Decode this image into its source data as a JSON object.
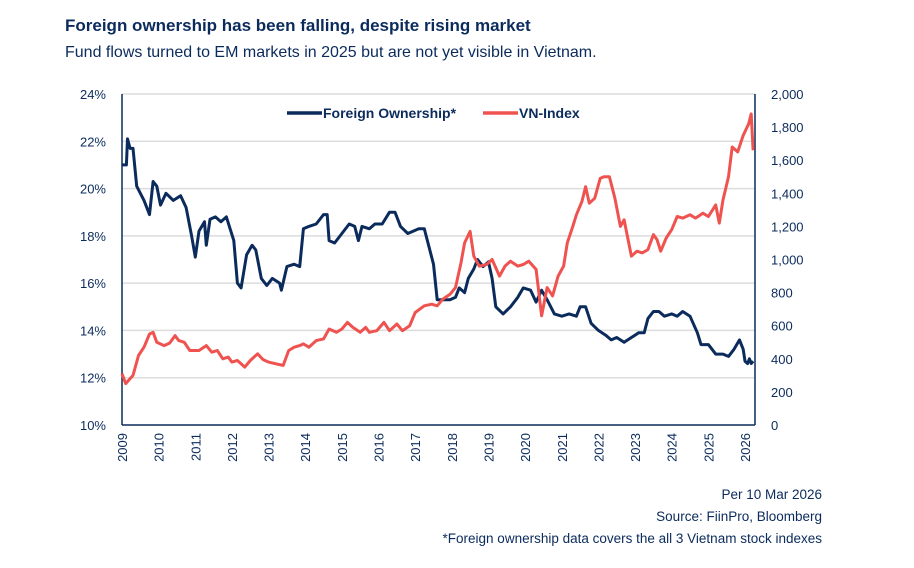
{
  "chart_data": {
    "type": "line",
    "title": "Foreign ownership has been falling, despite rising market",
    "subtitle": "Fund flows turned to EM markets in 2025 but are not yet visible in Vietnam.",
    "xlabel": "",
    "ylabel_left": "",
    "ylabel_right": "",
    "x_ticks": [
      "2009",
      "2010",
      "2011",
      "2012",
      "2013",
      "2014",
      "2015",
      "2016",
      "2017",
      "2018",
      "2019",
      "2020",
      "2021",
      "2022",
      "2023",
      "2024",
      "2025",
      "2026"
    ],
    "y_left": {
      "range": [
        10,
        24
      ],
      "ticks": [
        "10%",
        "12%",
        "14%",
        "16%",
        "18%",
        "20%",
        "22%",
        "24%"
      ],
      "tick_values": [
        10,
        12,
        14,
        16,
        18,
        20,
        22,
        24
      ]
    },
    "y_right": {
      "range": [
        0,
        2000
      ],
      "ticks": [
        "0",
        "200",
        "400",
        "600",
        "800",
        "1,000",
        "1,200",
        "1,400",
        "1,600",
        "1,800",
        "2,000"
      ],
      "tick_values": [
        0,
        200,
        400,
        600,
        800,
        1000,
        1200,
        1400,
        1600,
        1800,
        2000
      ]
    },
    "legend_position": "top-center",
    "grid": true,
    "series": [
      {
        "name": "Foreign Ownership*",
        "axis": "left",
        "color": "#0b2b5c",
        "x": [
          2009.0,
          2009.12,
          2009.15,
          2009.22,
          2009.3,
          2009.4,
          2009.6,
          2009.75,
          2009.85,
          2009.95,
          2010.05,
          2010.2,
          2010.4,
          2010.6,
          2010.75,
          2010.9,
          2011.0,
          2011.1,
          2011.25,
          2011.3,
          2011.4,
          2011.55,
          2011.7,
          2011.85,
          2011.95,
          2012.05,
          2012.15,
          2012.25,
          2012.4,
          2012.55,
          2012.65,
          2012.8,
          2012.95,
          2013.1,
          2013.3,
          2013.35,
          2013.5,
          2013.7,
          2013.85,
          2013.95,
          2014.1,
          2014.3,
          2014.5,
          2014.6,
          2014.65,
          2014.8,
          2015.0,
          2015.2,
          2015.35,
          2015.45,
          2015.55,
          2015.75,
          2015.9,
          2016.1,
          2016.3,
          2016.45,
          2016.6,
          2016.8,
          2016.95,
          2017.1,
          2017.25,
          2017.35,
          2017.5,
          2017.6,
          2017.75,
          2017.95,
          2018.1,
          2018.2,
          2018.35,
          2018.45,
          2018.6,
          2018.7,
          2018.85,
          2019.0,
          2019.1,
          2019.2,
          2019.4,
          2019.6,
          2019.8,
          2019.95,
          2020.15,
          2020.3,
          2020.45,
          2020.6,
          2020.8,
          2021.0,
          2021.2,
          2021.4,
          2021.5,
          2021.65,
          2021.8,
          2022.0,
          2022.2,
          2022.35,
          2022.5,
          2022.7,
          2022.9,
          2023.1,
          2023.25,
          2023.35,
          2023.5,
          2023.65,
          2023.8,
          2024.0,
          2024.15,
          2024.3,
          2024.5,
          2024.7,
          2024.8,
          2025.0,
          2025.2,
          2025.4,
          2025.55,
          2025.7,
          2025.85,
          2025.95,
          2026.0,
          2026.07,
          2026.12,
          2026.17,
          2026.22
        ],
        "values": [
          21.0,
          21.0,
          22.1,
          21.7,
          21.7,
          20.1,
          19.5,
          18.9,
          20.3,
          20.1,
          19.3,
          19.8,
          19.5,
          19.7,
          19.2,
          18.0,
          17.1,
          18.2,
          18.6,
          17.6,
          18.7,
          18.8,
          18.6,
          18.8,
          18.3,
          17.8,
          16.0,
          15.8,
          17.2,
          17.6,
          17.4,
          16.2,
          15.9,
          16.2,
          16.0,
          15.7,
          16.7,
          16.8,
          16.7,
          18.3,
          18.4,
          18.5,
          18.9,
          18.9,
          17.8,
          17.7,
          18.1,
          18.5,
          18.4,
          17.8,
          18.4,
          18.3,
          18.5,
          18.5,
          19.0,
          19.0,
          18.4,
          18.1,
          18.2,
          18.3,
          18.3,
          17.7,
          16.8,
          15.3,
          15.3,
          15.3,
          15.4,
          15.8,
          15.6,
          16.2,
          16.6,
          17.0,
          16.7,
          16.9,
          16.2,
          15.0,
          14.7,
          15.0,
          15.4,
          15.8,
          15.7,
          15.2,
          15.7,
          15.3,
          14.7,
          14.6,
          14.7,
          14.6,
          15.0,
          15.0,
          14.3,
          14.0,
          13.8,
          13.6,
          13.7,
          13.5,
          13.7,
          13.9,
          13.9,
          14.5,
          14.8,
          14.8,
          14.6,
          14.7,
          14.6,
          14.8,
          14.6,
          13.9,
          13.4,
          13.4,
          13.0,
          13.0,
          12.9,
          13.2,
          13.6,
          13.2,
          12.7,
          12.6,
          12.8,
          12.6,
          12.7
        ]
      },
      {
        "name": "VN-Index",
        "axis": "right",
        "color": "#ef5350",
        "x": [
          2009.0,
          2009.1,
          2009.3,
          2009.45,
          2009.6,
          2009.75,
          2009.85,
          2009.95,
          2010.15,
          2010.3,
          2010.45,
          2010.55,
          2010.7,
          2010.85,
          2011.1,
          2011.3,
          2011.45,
          2011.6,
          2011.75,
          2011.9,
          2012.0,
          2012.15,
          2012.35,
          2012.5,
          2012.7,
          2012.85,
          2013.0,
          2013.2,
          2013.4,
          2013.55,
          2013.7,
          2013.85,
          2013.95,
          2014.1,
          2014.3,
          2014.5,
          2014.65,
          2014.85,
          2015.0,
          2015.15,
          2015.3,
          2015.5,
          2015.65,
          2015.75,
          2015.95,
          2016.15,
          2016.3,
          2016.5,
          2016.65,
          2016.85,
          2017.0,
          2017.25,
          2017.45,
          2017.6,
          2017.75,
          2017.95,
          2018.1,
          2018.25,
          2018.35,
          2018.5,
          2018.6,
          2018.75,
          2018.95,
          2019.1,
          2019.3,
          2019.45,
          2019.6,
          2019.8,
          2019.95,
          2020.1,
          2020.3,
          2020.45,
          2020.6,
          2020.75,
          2020.9,
          2021.05,
          2021.15,
          2021.3,
          2021.4,
          2021.55,
          2021.65,
          2021.75,
          2021.9,
          2022.05,
          2022.15,
          2022.3,
          2022.45,
          2022.6,
          2022.7,
          2022.9,
          2023.05,
          2023.2,
          2023.35,
          2023.5,
          2023.6,
          2023.7,
          2023.85,
          2024.0,
          2024.15,
          2024.3,
          2024.5,
          2024.65,
          2024.85,
          2025.0,
          2025.2,
          2025.3,
          2025.4,
          2025.55,
          2025.65,
          2025.8,
          2025.95,
          2026.1,
          2026.17,
          2026.22
        ],
        "values": [
          310,
          250,
          300,
          420,
          470,
          550,
          560,
          500,
          480,
          495,
          540,
          510,
          500,
          450,
          450,
          480,
          440,
          450,
          400,
          410,
          380,
          390,
          350,
          390,
          430,
          395,
          380,
          370,
          360,
          450,
          470,
          480,
          490,
          470,
          510,
          520,
          580,
          560,
          580,
          620,
          590,
          560,
          590,
          560,
          570,
          620,
          570,
          610,
          570,
          600,
          680,
          720,
          730,
          720,
          760,
          790,
          830,
          980,
          1100,
          1170,
          1020,
          960,
          970,
          1000,
          900,
          960,
          990,
          960,
          970,
          990,
          940,
          660,
          830,
          780,
          900,
          960,
          1100,
          1200,
          1270,
          1350,
          1440,
          1340,
          1370,
          1490,
          1500,
          1500,
          1370,
          1200,
          1240,
          1020,
          1050,
          1040,
          1060,
          1150,
          1120,
          1050,
          1130,
          1180,
          1260,
          1250,
          1270,
          1250,
          1280,
          1260,
          1330,
          1220,
          1360,
          1500,
          1680,
          1650,
          1750,
          1820,
          1880,
          1660
        ]
      }
    ],
    "annotations": [
      "Per 10 Mar 2026",
      "Source: FiinPro, Bloomberg",
      "*Foreign ownership data covers the all 3 Vietnam stock indexes"
    ]
  }
}
